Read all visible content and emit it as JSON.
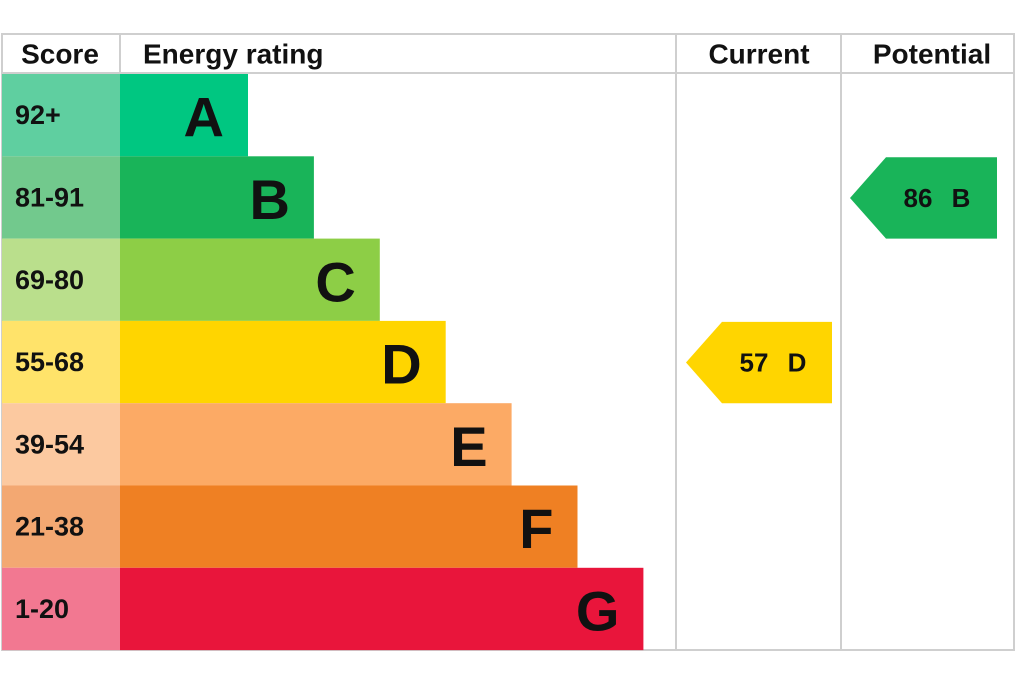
{
  "header": {
    "score": "Score",
    "rating": "Energy rating",
    "current": "Current",
    "potential": "Potential"
  },
  "rows": [
    {
      "score": "92+",
      "band": "A",
      "color": "#00c781",
      "score_color": "#5fcfa0"
    },
    {
      "score": "81-91",
      "band": "B",
      "color": "#19b459",
      "score_color": "#72c98d"
    },
    {
      "score": "69-80",
      "band": "C",
      "color": "#8dce46",
      "score_color": "#badf8c"
    },
    {
      "score": "55-68",
      "band": "D",
      "color": "#ffd500",
      "score_color": "#ffe36a"
    },
    {
      "score": "39-54",
      "band": "E",
      "color": "#fcaa65",
      "score_color": "#fcc9a0"
    },
    {
      "score": "21-38",
      "band": "F",
      "color": "#ef8023",
      "score_color": "#f3a872"
    },
    {
      "score": "1-20",
      "band": "G",
      "color": "#e9153b",
      "score_color": "#f27891"
    }
  ],
  "current": {
    "value": 57,
    "band": "D"
  },
  "potential": {
    "value": 86,
    "band": "B"
  }
}
